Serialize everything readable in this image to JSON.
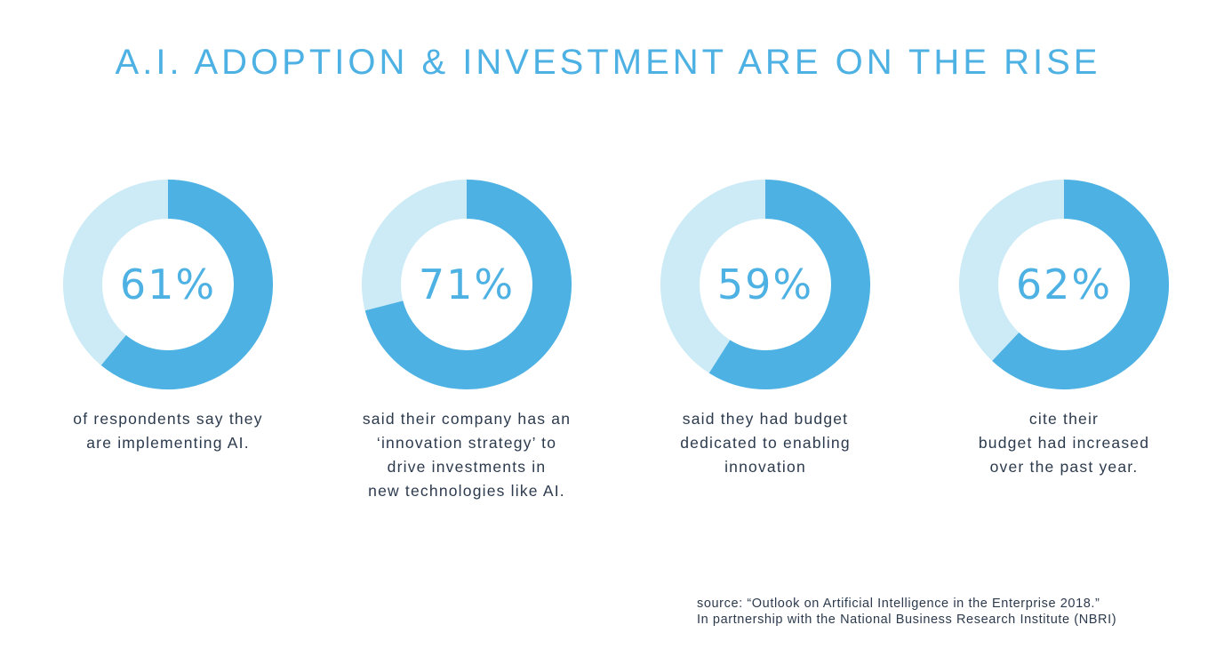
{
  "title": "A.I. ADOPTION & INVESTMENT ARE ON THE RISE",
  "colors": {
    "accent": "#4db1e3",
    "track": "#cdebf6",
    "text": "#2c3a4d"
  },
  "chart_data": {
    "type": "pie",
    "subtype": "donut",
    "title": "A.I. ADOPTION & INVESTMENT ARE ON THE RISE",
    "series": [
      {
        "value": 61,
        "label": "61%",
        "caption": [
          "of respondents say they",
          "are implementing AI."
        ]
      },
      {
        "value": 71,
        "label": "71%",
        "caption": [
          "said their company has an",
          "‘innovation strategy’ to",
          "drive investments in",
          "new technologies like AI."
        ]
      },
      {
        "value": 59,
        "label": "59%",
        "caption": [
          "said they had budget",
          "dedicated to enabling",
          "innovation"
        ]
      },
      {
        "value": 62,
        "label": "62%",
        "caption": [
          "cite their",
          "budget had increased",
          "over the past year."
        ]
      }
    ]
  },
  "source": {
    "line1": "source: “Outlook on Artificial Intelligence in the Enterprise 2018.”",
    "line2": "In partnership with the National Business Research Institute (NBRI)"
  }
}
